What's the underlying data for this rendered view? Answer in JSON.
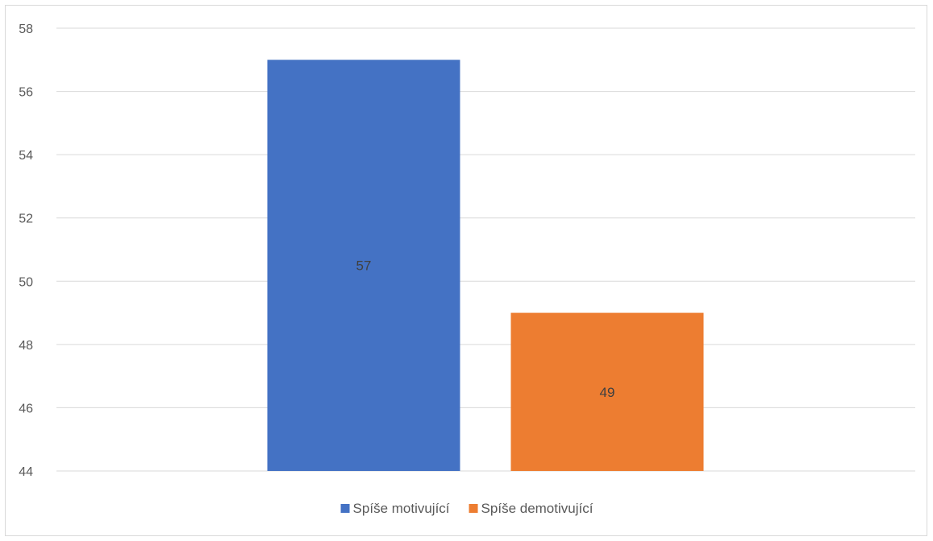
{
  "chart_data": {
    "type": "bar",
    "title": "",
    "xlabel": "",
    "ylabel": "",
    "ylim": [
      44,
      58
    ],
    "y_ticks": [
      44,
      46,
      48,
      50,
      52,
      54,
      56,
      58
    ],
    "grid": true,
    "legend_position": "bottom",
    "series": [
      {
        "name": "Spíše motivující",
        "values": [
          57
        ],
        "color": "#4472C4",
        "data_label": "57"
      },
      {
        "name": "Spíše demotivující",
        "values": [
          49
        ],
        "color": "#ED7D31",
        "data_label": "49"
      }
    ],
    "gridline_color": "#d9d9d9",
    "text_color": "#595959"
  }
}
